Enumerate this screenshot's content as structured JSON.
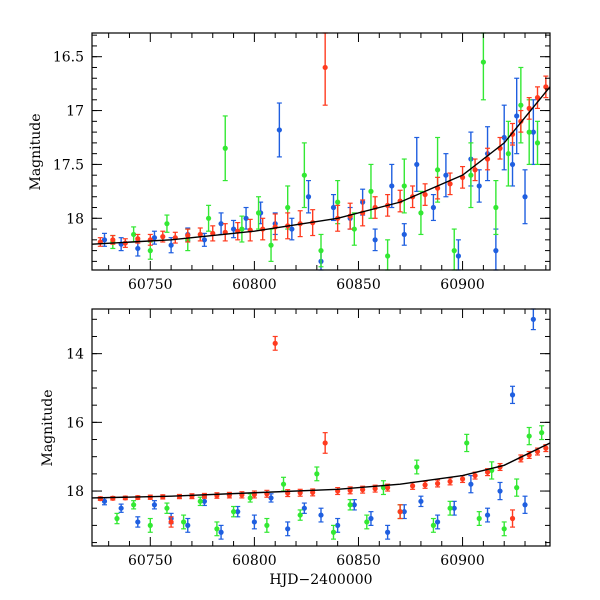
{
  "colors": {
    "blue": "#1f5fe0",
    "green": "#33e833",
    "red": "#ff3b1f",
    "axis": "#000000",
    "background": "#ffffff"
  },
  "chart_data": [
    {
      "type": "scatter",
      "title": "",
      "xlabel": "",
      "ylabel": "Magnitude",
      "xlim": [
        60722,
        60942
      ],
      "ylim": [
        18.48,
        16.28
      ],
      "y_inverted": true,
      "xticks": [
        60750,
        60800,
        60850,
        60900
      ],
      "yticks": [
        16.5,
        17,
        17.5,
        18
      ],
      "ytick_labels": [
        "16.5",
        "17",
        "17.5",
        "18"
      ],
      "trend": {
        "x": [
          60722,
          60760,
          60800,
          60840,
          60870,
          60900,
          60920,
          60942
        ],
        "y": [
          18.24,
          18.2,
          18.12,
          18.0,
          17.85,
          17.6,
          17.3,
          16.78
        ]
      },
      "series": [
        {
          "color": "blue",
          "x": [
            60728,
            60736,
            60744,
            60752,
            60760,
            60768,
            60776,
            60784,
            60790,
            60796,
            60803,
            60810,
            60812,
            60818,
            60826,
            60832,
            60838,
            60846,
            60852,
            60858,
            60866,
            60872,
            60878,
            60886,
            60892,
            60898,
            60904,
            60908,
            60912,
            60916,
            60920,
            60924,
            60926,
            60930,
            60934
          ],
          "y": [
            18.2,
            18.24,
            18.28,
            18.18,
            18.25,
            18.15,
            18.2,
            18.05,
            18.1,
            18.0,
            17.95,
            18.05,
            17.18,
            18.1,
            17.8,
            18.4,
            17.9,
            18.0,
            17.85,
            18.2,
            17.7,
            18.15,
            17.5,
            17.9,
            17.6,
            18.35,
            17.45,
            17.7,
            17.4,
            18.3,
            17.25,
            17.5,
            17.05,
            17.8,
            17.2
          ],
          "err": [
            0.06,
            0.06,
            0.07,
            0.06,
            0.07,
            0.06,
            0.06,
            0.1,
            0.08,
            0.1,
            0.1,
            0.1,
            0.25,
            0.1,
            0.15,
            0.1,
            0.12,
            0.1,
            0.12,
            0.1,
            0.2,
            0.1,
            0.25,
            0.12,
            0.2,
            0.15,
            0.25,
            0.15,
            0.25,
            0.2,
            0.3,
            0.2,
            0.35,
            0.25,
            0.3
          ]
        },
        {
          "color": "green",
          "x": [
            60732,
            60742,
            60750,
            60758,
            60768,
            60778,
            60786,
            60794,
            60802,
            60808,
            60816,
            60824,
            60832,
            60840,
            60848,
            60856,
            60864,
            60872,
            60880,
            60888,
            60896,
            60904,
            60910,
            60916,
            60922,
            60928,
            60932,
            60936
          ],
          "y": [
            18.22,
            18.15,
            18.3,
            18.05,
            18.2,
            18.0,
            17.35,
            18.1,
            17.95,
            18.25,
            17.9,
            17.6,
            18.3,
            17.85,
            18.1,
            17.75,
            18.35,
            17.7,
            17.95,
            17.55,
            18.3,
            17.6,
            16.55,
            17.9,
            17.4,
            16.95,
            17.2,
            17.3
          ],
          "err": [
            0.06,
            0.07,
            0.08,
            0.08,
            0.1,
            0.12,
            0.3,
            0.12,
            0.15,
            0.15,
            0.2,
            0.3,
            0.15,
            0.2,
            0.15,
            0.25,
            0.15,
            0.25,
            0.2,
            0.3,
            0.2,
            0.3,
            0.35,
            0.25,
            0.3,
            0.35,
            0.3,
            0.2
          ]
        },
        {
          "color": "red",
          "x": [
            60726,
            60732,
            60738,
            60744,
            60750,
            60756,
            60762,
            60768,
            60774,
            60780,
            60786,
            60792,
            60798,
            60804,
            60810,
            60816,
            60822,
            60828,
            60834,
            60840,
            60846,
            60852,
            60858,
            60864,
            60870,
            60876,
            60882,
            60888,
            60894,
            60900,
            60906,
            60912,
            60918,
            60924,
            60928,
            60932,
            60936,
            60940
          ],
          "y": [
            18.22,
            18.2,
            18.23,
            18.19,
            18.2,
            18.17,
            18.18,
            18.16,
            18.15,
            18.14,
            18.13,
            18.12,
            18.11,
            18.1,
            18.08,
            18.07,
            18.05,
            18.04,
            16.6,
            18.0,
            17.98,
            17.95,
            17.9,
            17.88,
            17.84,
            17.8,
            17.78,
            17.72,
            17.68,
            17.62,
            17.55,
            17.45,
            17.35,
            17.22,
            17.1,
            16.98,
            16.88,
            16.78
          ],
          "err": [
            0.04,
            0.04,
            0.04,
            0.04,
            0.05,
            0.05,
            0.05,
            0.06,
            0.06,
            0.07,
            0.08,
            0.08,
            0.1,
            0.1,
            0.12,
            0.12,
            0.12,
            0.12,
            0.35,
            0.12,
            0.12,
            0.12,
            0.1,
            0.1,
            0.1,
            0.1,
            0.1,
            0.1,
            0.1,
            0.1,
            0.1,
            0.1,
            0.1,
            0.1,
            0.1,
            0.1,
            0.1,
            0.1
          ]
        }
      ]
    },
    {
      "type": "scatter",
      "title": "",
      "xlabel": "HJD−2400000",
      "ylabel": "Magnitude",
      "xlim": [
        60722,
        60942
      ],
      "ylim": [
        19.6,
        12.7
      ],
      "y_inverted": true,
      "xticks": [
        60750,
        60800,
        60850,
        60900
      ],
      "yticks": [
        14,
        16,
        18
      ],
      "ytick_labels": [
        "14",
        "16",
        "18"
      ],
      "trend": {
        "x": [
          60722,
          60760,
          60800,
          60840,
          60870,
          60900,
          60920,
          60942
        ],
        "y": [
          18.2,
          18.15,
          18.05,
          17.95,
          17.8,
          17.55,
          17.25,
          16.6
        ]
      },
      "series": [
        {
          "color": "blue",
          "x": [
            60728,
            60736,
            60744,
            60752,
            60760,
            60768,
            60776,
            60784,
            60792,
            60800,
            60808,
            60816,
            60824,
            60832,
            60840,
            60848,
            60856,
            60864,
            60872,
            60880,
            60888,
            60896,
            60904,
            60912,
            60918,
            60924,
            60930,
            60934
          ],
          "y": [
            18.3,
            18.5,
            18.9,
            18.4,
            18.8,
            19.0,
            18.3,
            19.2,
            18.6,
            18.9,
            18.2,
            19.1,
            18.5,
            18.7,
            19.0,
            18.4,
            18.8,
            19.2,
            18.6,
            18.3,
            18.9,
            18.5,
            17.8,
            18.7,
            18.0,
            15.2,
            18.4,
            13.0
          ],
          "err": [
            0.1,
            0.12,
            0.15,
            0.12,
            0.15,
            0.2,
            0.12,
            0.2,
            0.15,
            0.2,
            0.12,
            0.2,
            0.15,
            0.2,
            0.2,
            0.15,
            0.2,
            0.2,
            0.2,
            0.15,
            0.2,
            0.2,
            0.25,
            0.2,
            0.25,
            0.25,
            0.25,
            0.3
          ]
        },
        {
          "color": "green",
          "x": [
            60734,
            60742,
            60750,
            60758,
            60766,
            60774,
            60782,
            60790,
            60798,
            60806,
            60814,
            60822,
            60830,
            60838,
            60846,
            60854,
            60862,
            60870,
            60878,
            60886,
            60894,
            60902,
            60908,
            60914,
            60920,
            60926,
            60932,
            60938
          ],
          "y": [
            18.8,
            18.4,
            19.0,
            18.5,
            18.9,
            18.3,
            19.1,
            18.6,
            18.2,
            19.0,
            17.8,
            18.7,
            17.5,
            19.2,
            18.4,
            18.9,
            17.9,
            18.6,
            17.3,
            19.0,
            18.5,
            16.6,
            18.8,
            17.4,
            19.1,
            17.9,
            16.4,
            16.3
          ],
          "err": [
            0.15,
            0.12,
            0.2,
            0.15,
            0.2,
            0.12,
            0.2,
            0.15,
            0.12,
            0.2,
            0.2,
            0.15,
            0.2,
            0.2,
            0.15,
            0.2,
            0.2,
            0.2,
            0.2,
            0.2,
            0.2,
            0.25,
            0.2,
            0.25,
            0.2,
            0.25,
            0.25,
            0.2
          ]
        },
        {
          "color": "red",
          "x": [
            60726,
            60732,
            60738,
            60744,
            60750,
            60756,
            60760,
            60764,
            60770,
            60776,
            60782,
            60788,
            60794,
            60800,
            60806,
            60810,
            60816,
            60822,
            60828,
            60834,
            60840,
            60846,
            60852,
            60858,
            60864,
            60870,
            60876,
            60882,
            60888,
            60894,
            60900,
            60906,
            60912,
            60918,
            60924,
            60928,
            60932,
            60936,
            60940
          ],
          "y": [
            18.22,
            18.21,
            18.2,
            18.19,
            18.18,
            18.17,
            18.9,
            18.16,
            18.15,
            18.14,
            18.13,
            18.12,
            18.11,
            18.1,
            18.08,
            13.7,
            18.06,
            18.05,
            18.04,
            16.6,
            18.0,
            17.98,
            17.96,
            17.93,
            17.9,
            18.6,
            17.85,
            17.82,
            17.78,
            17.72,
            17.65,
            17.55,
            17.45,
            17.3,
            18.8,
            17.05,
            16.95,
            16.85,
            16.75
          ],
          "err": [
            0.05,
            0.05,
            0.05,
            0.05,
            0.06,
            0.06,
            0.15,
            0.06,
            0.07,
            0.07,
            0.08,
            0.08,
            0.09,
            0.1,
            0.1,
            0.2,
            0.1,
            0.1,
            0.1,
            0.3,
            0.1,
            0.1,
            0.1,
            0.1,
            0.1,
            0.2,
            0.1,
            0.1,
            0.1,
            0.1,
            0.1,
            0.1,
            0.1,
            0.1,
            0.25,
            0.1,
            0.1,
            0.1,
            0.1
          ]
        }
      ]
    }
  ]
}
